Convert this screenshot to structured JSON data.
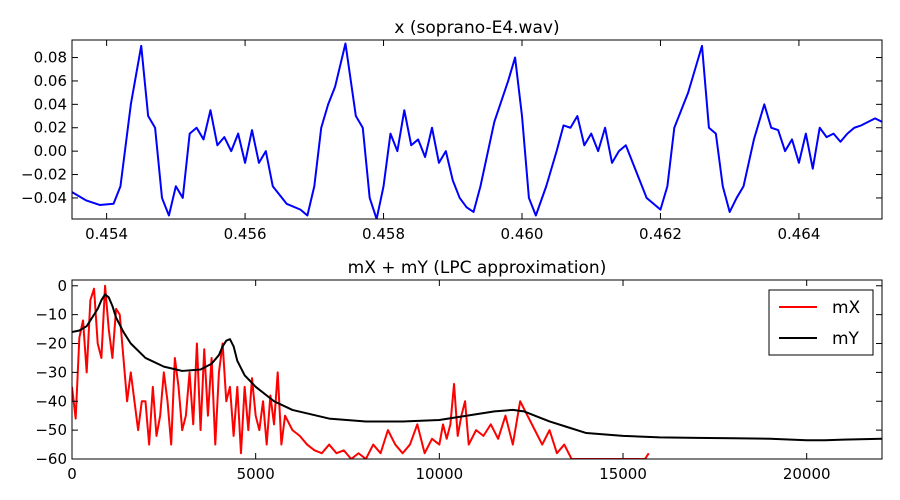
{
  "chart_data": [
    {
      "type": "line",
      "title": "x (soprano-E4.wav)",
      "xlim": [
        0.4535,
        0.4652
      ],
      "ylim": [
        -0.058,
        0.095
      ],
      "xticks": [
        {
          "v": 0.454,
          "label": "0.454"
        },
        {
          "v": 0.456,
          "label": "0.456"
        },
        {
          "v": 0.458,
          "label": "0.458"
        },
        {
          "v": 0.46,
          "label": "0.460"
        },
        {
          "v": 0.462,
          "label": "0.462"
        },
        {
          "v": 0.464,
          "label": "0.464"
        }
      ],
      "yticks": [
        {
          "v": -0.04,
          "label": "−0.04"
        },
        {
          "v": -0.02,
          "label": "−0.02"
        },
        {
          "v": 0.0,
          "label": "0.00"
        },
        {
          "v": 0.02,
          "label": "0.02"
        },
        {
          "v": 0.04,
          "label": "0.04"
        },
        {
          "v": 0.06,
          "label": "0.06"
        },
        {
          "v": 0.08,
          "label": "0.08"
        }
      ],
      "grid": false,
      "series": [
        {
          "color": "#0000ff",
          "x": [
            0.4535,
            0.4537,
            0.4539,
            0.4541,
            0.4542,
            0.45435,
            0.4545,
            0.4546,
            0.4547,
            0.4548,
            0.4549,
            0.455,
            0.4551,
            0.4552,
            0.4553,
            0.4554,
            0.4555,
            0.4556,
            0.4557,
            0.4558,
            0.4559,
            0.456,
            0.4561,
            0.4562,
            0.4563,
            0.4564,
            0.4566,
            0.4568,
            0.4569,
            0.457,
            0.4571,
            0.4572,
            0.4573,
            0.45745,
            0.4576,
            0.4577,
            0.4578,
            0.4579,
            0.458,
            0.4581,
            0.4582,
            0.4583,
            0.4584,
            0.4585,
            0.4586,
            0.4587,
            0.4588,
            0.4589,
            0.459,
            0.4591,
            0.4592,
            0.4593,
            0.4594,
            0.4596,
            0.4598,
            0.4599,
            0.46,
            0.4601,
            0.4602,
            0.46035,
            0.4605,
            0.4606,
            0.4607,
            0.4608,
            0.4609,
            0.461,
            0.4611,
            0.4612,
            0.4613,
            0.4614,
            0.4615,
            0.4616,
            0.4617,
            0.4618,
            0.4619,
            0.462,
            0.4621,
            0.4622,
            0.4624,
            0.4626,
            0.4627,
            0.4628,
            0.4629,
            0.463,
            0.4631,
            0.4632,
            0.46335,
            0.4635,
            0.4636,
            0.4637,
            0.4638,
            0.4639,
            0.464,
            0.4641,
            0.4642,
            0.4643,
            0.4644,
            0.4645,
            0.4646,
            0.4647,
            0.4648,
            0.4649,
            0.465,
            0.4651,
            0.4652
          ],
          "y": [
            -0.035,
            -0.042,
            -0.046,
            -0.045,
            -0.03,
            0.04,
            0.09,
            0.03,
            0.02,
            -0.04,
            -0.055,
            -0.03,
            -0.04,
            0.015,
            0.02,
            0.01,
            0.035,
            0.005,
            0.012,
            0.0,
            0.015,
            -0.01,
            0.018,
            -0.01,
            0.0,
            -0.03,
            -0.045,
            -0.05,
            -0.055,
            -0.03,
            0.02,
            0.04,
            0.055,
            0.092,
            0.03,
            0.02,
            -0.04,
            -0.058,
            -0.03,
            0.015,
            0.0,
            0.035,
            0.005,
            0.01,
            -0.005,
            0.02,
            -0.01,
            0.0,
            -0.025,
            -0.04,
            -0.048,
            -0.052,
            -0.03,
            0.025,
            0.06,
            0.08,
            0.03,
            -0.04,
            -0.055,
            -0.03,
            0.0,
            0.022,
            0.02,
            0.03,
            0.005,
            0.015,
            0.0,
            0.02,
            -0.01,
            0.0,
            0.005,
            -0.01,
            -0.025,
            -0.04,
            -0.045,
            -0.05,
            -0.03,
            0.02,
            0.05,
            0.09,
            0.02,
            0.015,
            -0.03,
            -0.052,
            -0.04,
            -0.03,
            0.01,
            0.04,
            0.02,
            0.018,
            0.0,
            0.01,
            -0.01,
            0.015,
            -0.015,
            0.02,
            0.012,
            0.015,
            0.008,
            0.015,
            0.02,
            0.022,
            0.025,
            0.028,
            0.025
          ]
        }
      ]
    },
    {
      "type": "line",
      "title": "mX + mY (LPC approximation)",
      "xlim": [
        0,
        22050
      ],
      "ylim": [
        -60,
        2
      ],
      "xticks": [
        {
          "v": 0,
          "label": "0"
        },
        {
          "v": 5000,
          "label": "5000"
        },
        {
          "v": 10000,
          "label": "10000"
        },
        {
          "v": 15000,
          "label": "15000"
        },
        {
          "v": 20000,
          "label": "20000"
        }
      ],
      "yticks": [
        {
          "v": -60,
          "label": "−60"
        },
        {
          "v": -50,
          "label": "−50"
        },
        {
          "v": -40,
          "label": "−40"
        },
        {
          "v": -30,
          "label": "−30"
        },
        {
          "v": -20,
          "label": "−20"
        },
        {
          "v": -10,
          "label": "−10"
        },
        {
          "v": 0,
          "label": "0"
        }
      ],
      "grid": false,
      "legend": {
        "placement": "top-right",
        "entries": [
          "mX",
          "mY"
        ]
      },
      "series": [
        {
          "name": "mX",
          "color": "#ff0000",
          "x": [
            0,
            100,
            200,
            300,
            400,
            500,
            600,
            700,
            800,
            900,
            1000,
            1100,
            1200,
            1300,
            1400,
            1500,
            1600,
            1700,
            1800,
            1900,
            2000,
            2100,
            2200,
            2300,
            2400,
            2500,
            2600,
            2700,
            2800,
            2900,
            3000,
            3100,
            3200,
            3300,
            3400,
            3500,
            3600,
            3700,
            3800,
            3900,
            4000,
            4100,
            4200,
            4300,
            4400,
            4500,
            4600,
            4700,
            4800,
            4900,
            5000,
            5100,
            5200,
            5300,
            5400,
            5500,
            5600,
            5700,
            5800,
            6000,
            6200,
            6400,
            6600,
            6800,
            7000,
            7200,
            7400,
            7600,
            7800,
            8000,
            8200,
            8400,
            8600,
            8800,
            9000,
            9200,
            9400,
            9600,
            9800,
            10000,
            10100,
            10200,
            10300,
            10400,
            10500,
            10600,
            10700,
            10800,
            11000,
            11200,
            11400,
            11600,
            11800,
            12000,
            12200,
            12400,
            12600,
            12800,
            13000,
            13200,
            13400,
            13600,
            13800,
            14000,
            15600,
            15700
          ],
          "y": [
            -35,
            -46,
            -18,
            -12,
            -30,
            -5,
            -1,
            -20,
            -25,
            0,
            -15,
            -25,
            -8,
            -10,
            -25,
            -40,
            -30,
            -40,
            -50,
            -40,
            -40,
            -55,
            -35,
            -52,
            -45,
            -30,
            -40,
            -55,
            -25,
            -35,
            -50,
            -45,
            -30,
            -48,
            -20,
            -50,
            -22,
            -45,
            -25,
            -55,
            -30,
            -20,
            -40,
            -35,
            -52,
            -35,
            -58,
            -35,
            -50,
            -32,
            -45,
            -50,
            -40,
            -55,
            -38,
            -48,
            -30,
            -55,
            -45,
            -50,
            -52,
            -55,
            -57,
            -58,
            -55,
            -58,
            -57,
            -60,
            -58,
            -60,
            -55,
            -58,
            -50,
            -55,
            -58,
            -55,
            -48,
            -58,
            -53,
            -55,
            -48,
            -53,
            -48,
            -34,
            -52,
            -45,
            -40,
            -55,
            -50,
            -52,
            -48,
            -53,
            -45,
            -55,
            -40,
            -45,
            -50,
            -55,
            -50,
            -58,
            -55,
            -60,
            -60,
            -60,
            -60,
            -58
          ]
        },
        {
          "name": "mY",
          "color": "#000000",
          "x": [
            0,
            200,
            400,
            600,
            700,
            800,
            900,
            1000,
            1100,
            1200,
            1400,
            1600,
            2000,
            2500,
            3000,
            3500,
            3800,
            4000,
            4100,
            4200,
            4300,
            4400,
            4500,
            4700,
            5000,
            5500,
            6000,
            7000,
            8000,
            9000,
            10000,
            10500,
            11000,
            11500,
            12000,
            12300,
            12600,
            13000,
            13500,
            14000,
            15000,
            16000,
            17000,
            18000,
            19000,
            20000,
            20500,
            21000,
            22050
          ],
          "y": [
            -16,
            -15.5,
            -14,
            -10,
            -8,
            -5,
            -3,
            -4,
            -7,
            -11,
            -16,
            -20,
            -25,
            -28,
            -29.5,
            -29,
            -27,
            -24,
            -21,
            -19,
            -18.5,
            -21,
            -26,
            -31,
            -35,
            -40,
            -43,
            -46,
            -47,
            -47,
            -46.5,
            -45.5,
            -44.5,
            -43.5,
            -43,
            -43.5,
            -45,
            -47,
            -49,
            -51,
            -52,
            -52.5,
            -52.7,
            -52.8,
            -53,
            -53.5,
            -53.5,
            -53.3,
            -53
          ]
        }
      ]
    }
  ]
}
